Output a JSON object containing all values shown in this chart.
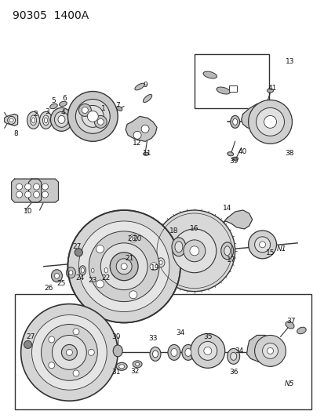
{
  "title": "90305  1400A",
  "background_color": "#ffffff",
  "line_color": "#333333",
  "label_color": "#111111",
  "label_fontsize": 6.5,
  "fig_width": 4.14,
  "fig_height": 5.33,
  "dpi": 100
}
